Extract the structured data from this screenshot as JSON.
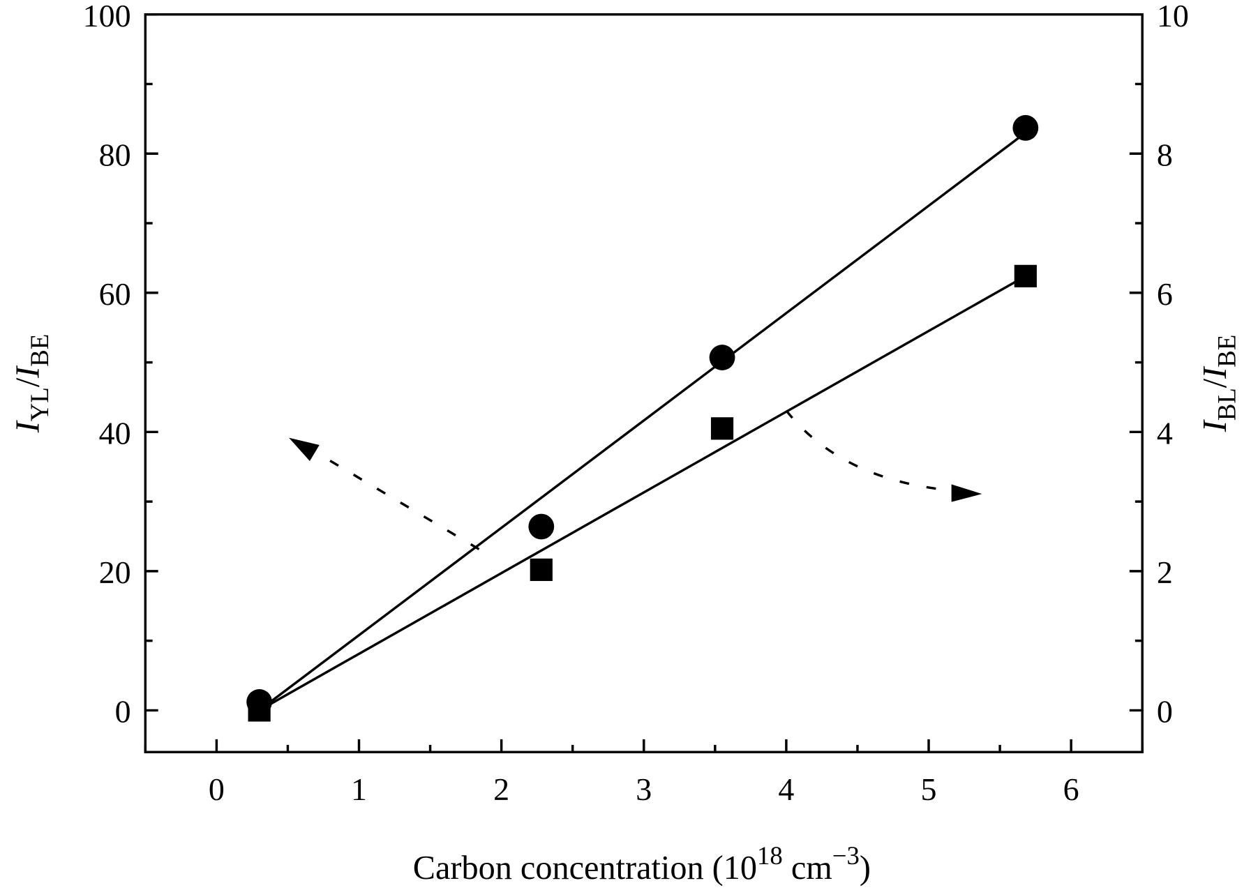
{
  "chart_data": {
    "type": "scatter",
    "title": "",
    "xlabel": "Carbon concentration (10^18 cm^-3)",
    "xlabel_parts": {
      "main": "Carbon concentration (10",
      "sup1": "18",
      "mid": " cm",
      "sup2": "−3",
      "end": ")"
    },
    "ylabel_left": {
      "i1": "I",
      "s1": "YL",
      "slash": "/",
      "i2": "I",
      "s2": "BE"
    },
    "ylabel_right": {
      "i1": "I",
      "s1": "BL",
      "slash": "/",
      "i2": "I",
      "s2": "BE"
    },
    "xlim": [
      -0.5,
      6.5
    ],
    "ylim_left": [
      -6,
      100
    ],
    "ylim_right": [
      -0.6,
      10
    ],
    "xticks": [
      "0",
      "1",
      "2",
      "3",
      "4",
      "5",
      "6"
    ],
    "yticks_left": [
      "0",
      "20",
      "40",
      "60",
      "80",
      "100"
    ],
    "yticks_right": [
      "0",
      "2",
      "4",
      "6",
      "8",
      "10"
    ],
    "series": [
      {
        "name": "I_YL/I_BE",
        "axis": "left",
        "marker": "circle",
        "x": [
          0.3,
          2.28,
          3.55,
          5.68
        ],
        "y": [
          1.2,
          26.4,
          50.7,
          83.7
        ],
        "fit": {
          "x": [
            0.3,
            5.68
          ],
          "y": [
            0,
            83
          ]
        }
      },
      {
        "name": "I_BL/I_BE",
        "axis": "right",
        "marker": "square",
        "x": [
          0.3,
          2.28,
          3.55,
          5.68
        ],
        "y": [
          0.0,
          2.02,
          4.05,
          6.24
        ],
        "fit": {
          "x": [
            0.3,
            5.68
          ],
          "y": [
            0,
            6.24
          ]
        }
      }
    ],
    "annotations": [
      {
        "type": "dashed-arrow",
        "points_to": "left axis"
      },
      {
        "type": "dashed-arrow",
        "points_to": "right axis"
      }
    ]
  }
}
